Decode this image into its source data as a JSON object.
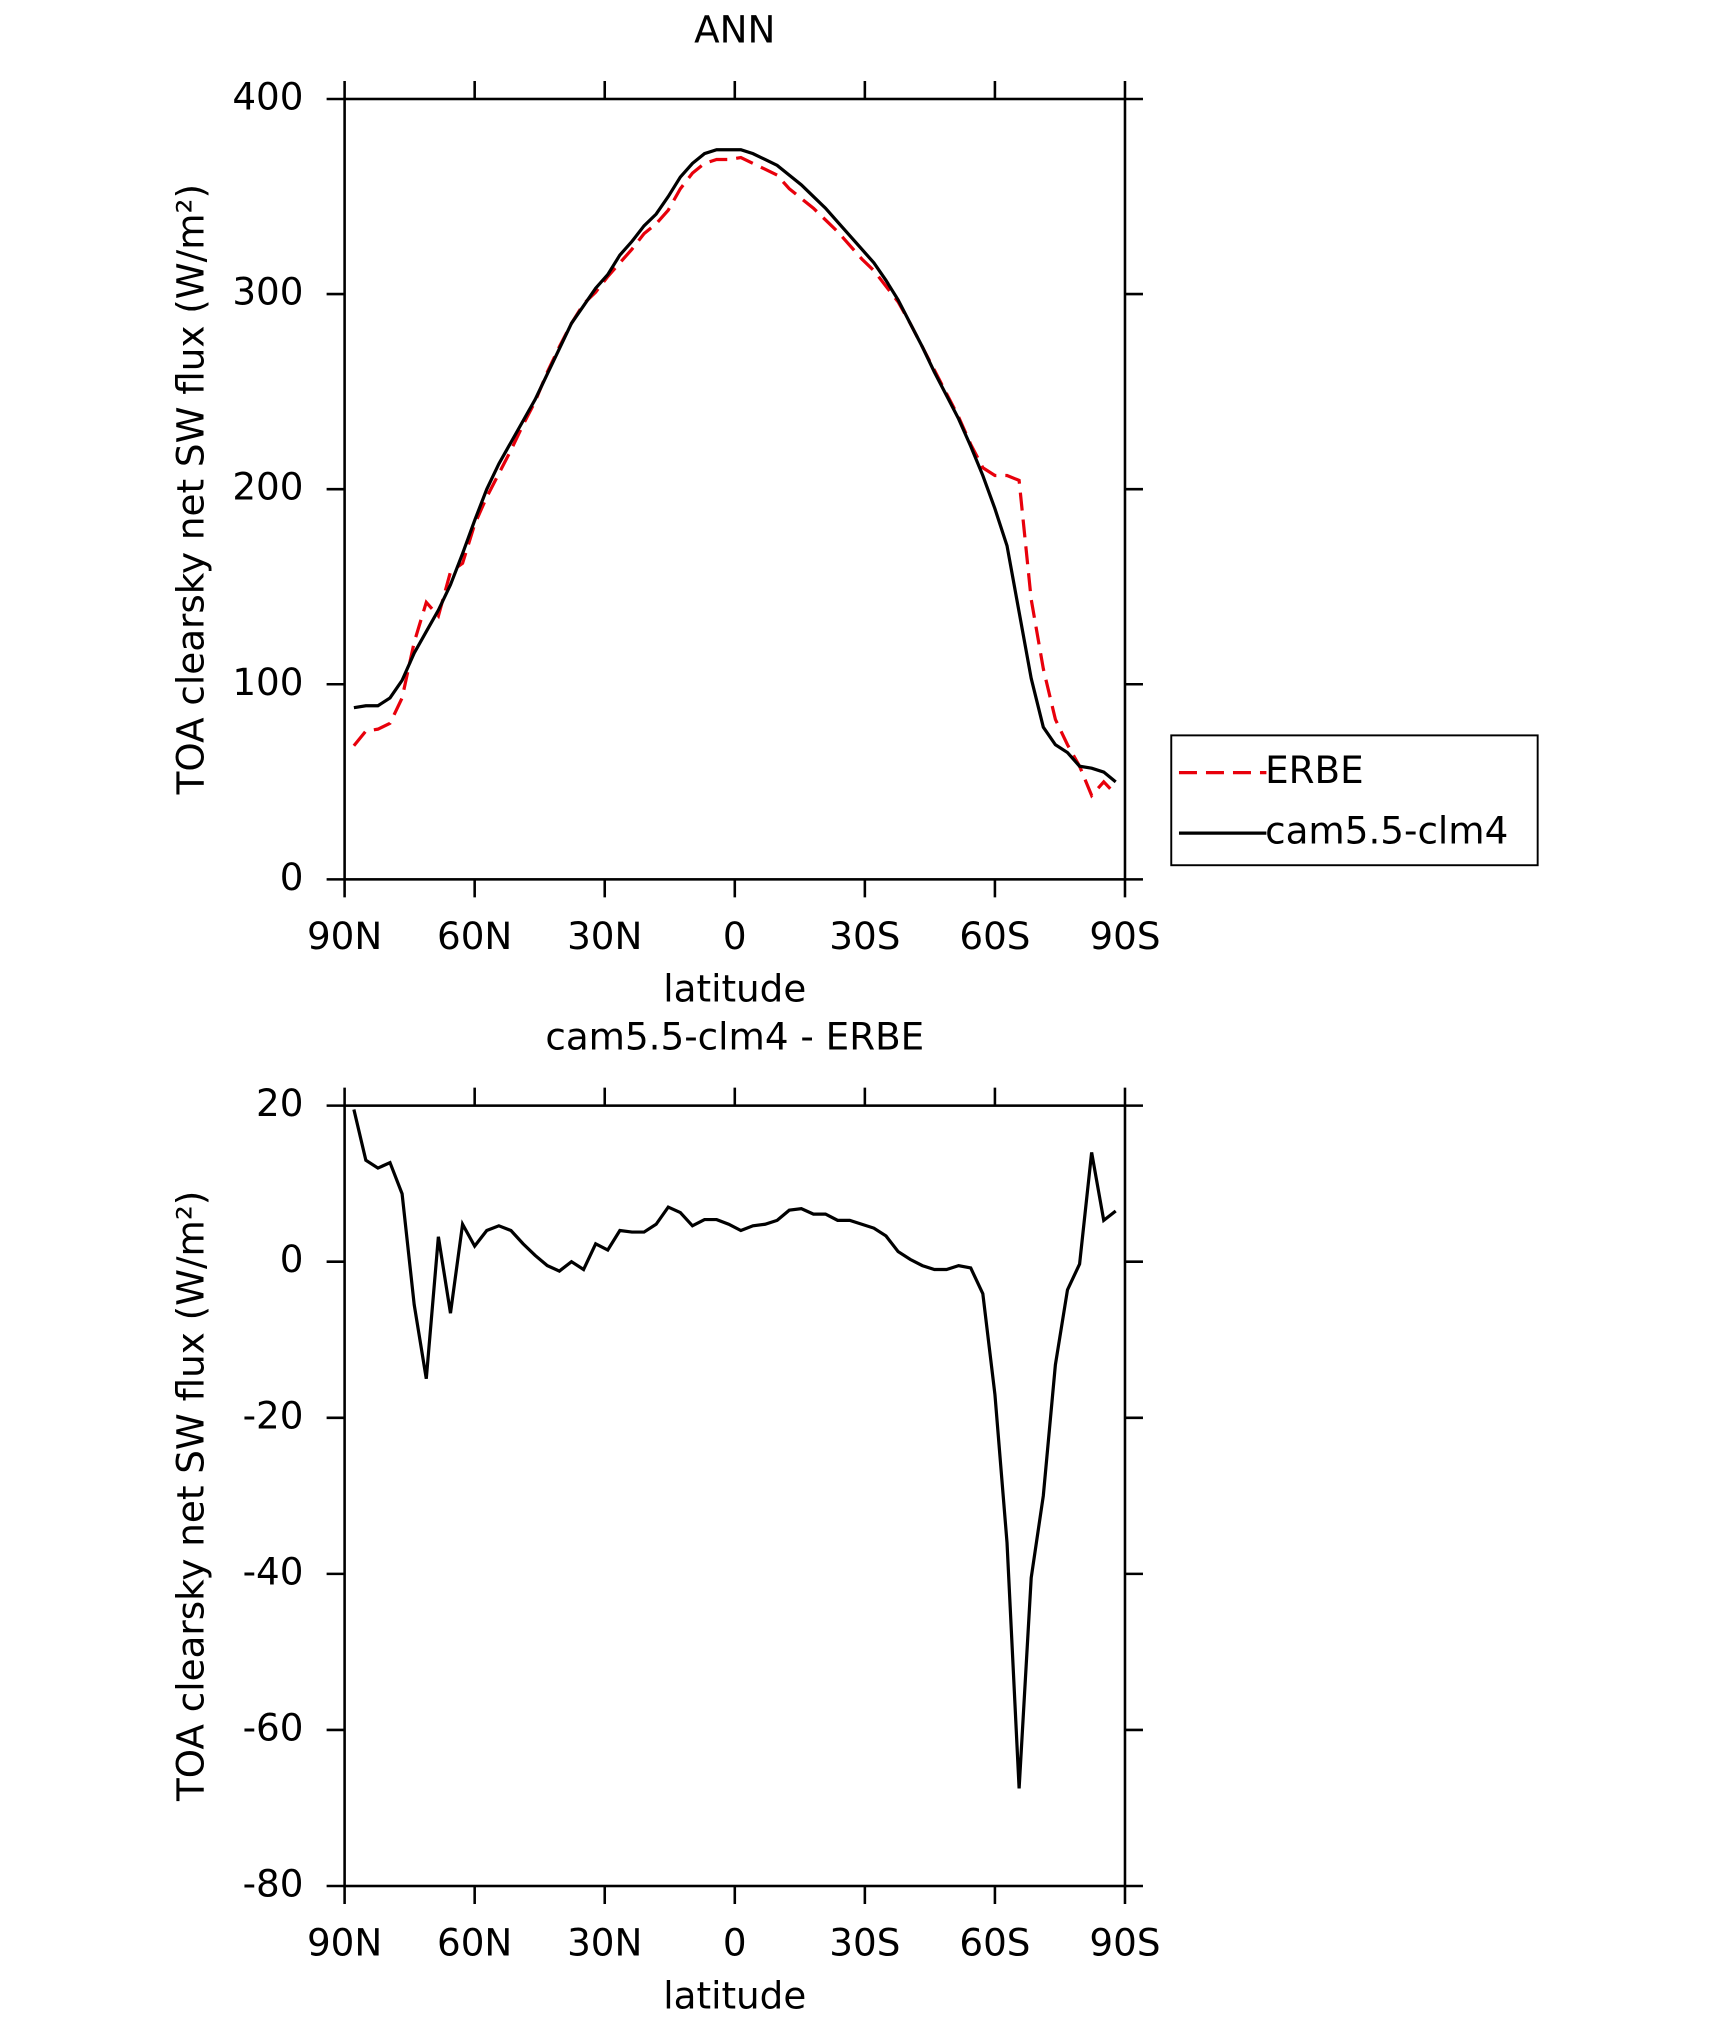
{
  "chart_data": [
    {
      "type": "line",
      "title": "ANN",
      "xlabel": "latitude",
      "ylabel": "TOA clearsky net SW flux (W/m²)",
      "x": [
        87.86,
        85.1,
        82.31,
        79.53,
        76.74,
        73.95,
        71.16,
        68.37,
        65.58,
        62.79,
        60.0,
        57.21,
        54.42,
        51.63,
        48.84,
        46.04,
        43.25,
        40.46,
        37.67,
        34.88,
        32.09,
        29.3,
        26.51,
        23.72,
        20.93,
        18.14,
        15.35,
        12.56,
        9.77,
        6.98,
        4.19,
        1.4,
        -1.4,
        -4.19,
        -6.98,
        -9.77,
        -12.56,
        -15.35,
        -18.14,
        -20.93,
        -23.72,
        -26.51,
        -29.3,
        -32.09,
        -34.88,
        -37.67,
        -40.46,
        -43.25,
        -46.04,
        -48.84,
        -51.63,
        -54.42,
        -57.21,
        -60.0,
        -62.79,
        -65.58,
        -68.37,
        -71.16,
        -73.95,
        -76.74,
        -79.53,
        -82.31,
        -85.1,
        -87.86
      ],
      "series": [
        {
          "name": "ERBE",
          "color": "#e8000b",
          "dashed": true,
          "values": [
            68.5,
            76,
            77,
            80,
            93,
            121.5,
            142,
            135,
            157.6,
            162,
            182,
            196,
            208,
            220,
            233,
            245,
            260,
            273,
            285,
            295,
            301,
            309,
            316,
            323,
            331,
            336,
            343,
            354,
            362,
            367,
            369,
            369,
            370,
            367,
            364,
            361,
            354,
            349,
            344,
            338,
            332,
            325,
            318,
            312,
            304,
            296,
            285,
            273,
            261,
            249,
            237,
            223,
            211,
            207,
            207,
            204.5,
            143.5,
            108,
            82,
            69,
            58,
            43,
            50,
            43.5
          ]
        },
        {
          "name": "cam5.5-clm4",
          "color": "#000000",
          "dashed": false,
          "values": [
            88,
            89,
            89,
            93,
            102,
            116,
            127,
            138,
            151,
            167,
            184,
            200,
            213,
            224,
            235,
            246,
            259,
            272,
            285,
            294,
            303,
            310,
            320,
            327,
            335,
            341,
            350,
            360,
            367,
            372,
            374,
            374,
            374,
            372,
            369,
            366,
            361,
            356,
            350,
            344,
            337,
            330,
            323,
            316,
            307,
            297,
            285,
            273,
            260,
            248,
            236,
            222,
            207,
            190,
            171,
            137,
            103,
            78,
            69,
            65,
            58,
            57,
            55,
            50
          ]
        }
      ],
      "xlim": [
        90,
        -90
      ],
      "xticks": [
        {
          "value": 90,
          "label": "90N"
        },
        {
          "value": 60,
          "label": "60N"
        },
        {
          "value": 30,
          "label": "30N"
        },
        0,
        {
          "value": -30,
          "label": "30S"
        },
        {
          "value": -60,
          "label": "60S"
        },
        {
          "value": -90,
          "label": "90S"
        }
      ],
      "ylim": [
        0,
        400
      ],
      "yticks": [
        0,
        100,
        200,
        300,
        400
      ],
      "legend": "right"
    },
    {
      "type": "line",
      "title": "cam5.5-clm4 - ERBE",
      "xlabel": "latitude",
      "ylabel": "TOA clearsky net SW flux (W/m²)",
      "x": [
        87.86,
        85.1,
        82.31,
        79.53,
        76.74,
        73.95,
        71.16,
        68.37,
        65.58,
        62.79,
        60.0,
        57.21,
        54.42,
        51.63,
        48.84,
        46.04,
        43.25,
        40.46,
        37.67,
        34.88,
        32.09,
        29.3,
        26.51,
        23.72,
        20.93,
        18.14,
        15.35,
        12.56,
        9.77,
        6.98,
        4.19,
        1.4,
        -1.4,
        -4.19,
        -6.98,
        -9.77,
        -12.56,
        -15.35,
        -18.14,
        -20.93,
        -23.72,
        -26.51,
        -29.3,
        -32.09,
        -34.88,
        -37.67,
        -40.46,
        -43.25,
        -46.04,
        -48.84,
        -51.63,
        -54.42,
        -57.21,
        -60.0,
        -62.79,
        -65.58,
        -68.37,
        -71.16,
        -73.95,
        -76.74,
        -79.53,
        -82.31,
        -85.1,
        -87.86
      ],
      "color": "#000000",
      "values": [
        19.5,
        13,
        12,
        12.7,
        8.7,
        -5.5,
        -15,
        3.2,
        -6.6,
        4.8,
        2,
        4,
        4.6,
        4,
        2.3,
        0.8,
        -0.5,
        -1.2,
        0,
        -1,
        2.3,
        1.5,
        4,
        3.8,
        3.8,
        4.8,
        7,
        6.3,
        4.6,
        5.4,
        5.4,
        4.8,
        4,
        4.6,
        4.8,
        5.3,
        6.6,
        6.8,
        6.1,
        6.1,
        5.3,
        5.3,
        4.8,
        4.3,
        3.3,
        1.3,
        0.3,
        -0.5,
        -1,
        -1,
        -0.5,
        -0.8,
        -4.1,
        -17,
        -36,
        -67.5,
        -40.5,
        -30,
        -13.2,
        -3.6,
        -0.3,
        14,
        5.3,
        6.5
      ],
      "xlim": [
        90,
        -90
      ],
      "xticks": [
        {
          "value": 90,
          "label": "90N"
        },
        {
          "value": 60,
          "label": "60N"
        },
        {
          "value": 30,
          "label": "30N"
        },
        0,
        {
          "value": -30,
          "label": "30S"
        },
        {
          "value": -60,
          "label": "60S"
        },
        {
          "value": -90,
          "label": "90S"
        }
      ],
      "ylim": [
        -80,
        20
      ],
      "yticks": [
        -80,
        -60,
        -40,
        -20,
        0,
        20
      ]
    }
  ]
}
